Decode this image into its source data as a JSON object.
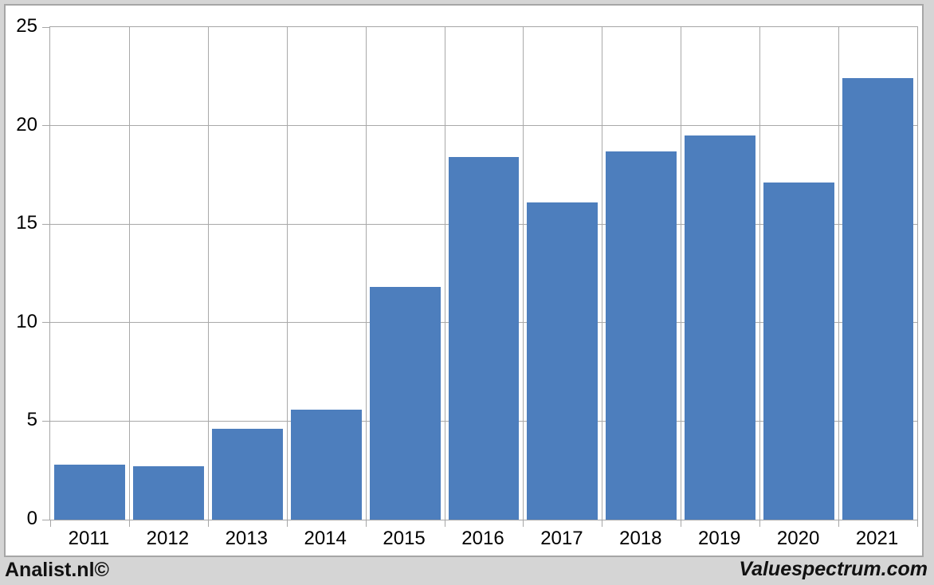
{
  "chart_data": {
    "type": "bar",
    "title": "",
    "xlabel": "",
    "ylabel": "",
    "categories": [
      "2011",
      "2012",
      "2013",
      "2014",
      "2015",
      "2016",
      "2017",
      "2018",
      "2019",
      "2020",
      "2021"
    ],
    "values": [
      2.8,
      2.7,
      4.6,
      5.6,
      11.8,
      18.4,
      16.1,
      18.7,
      19.5,
      17.1,
      22.4
    ],
    "ylim": [
      0,
      25
    ],
    "yticks": [
      0,
      5,
      10,
      15,
      20,
      25
    ],
    "grid": true,
    "legend": "none",
    "bar_color": "#4d7ebd",
    "grid_color": "#a9a9a9"
  },
  "footer": {
    "left": "Analist.nl©",
    "right": "Valuespectrum.com"
  },
  "colors": {
    "page_background": "#d5d5d5",
    "chart_background": "#ffffff",
    "frame_border": "#a6a6a6",
    "text": "#000000"
  }
}
